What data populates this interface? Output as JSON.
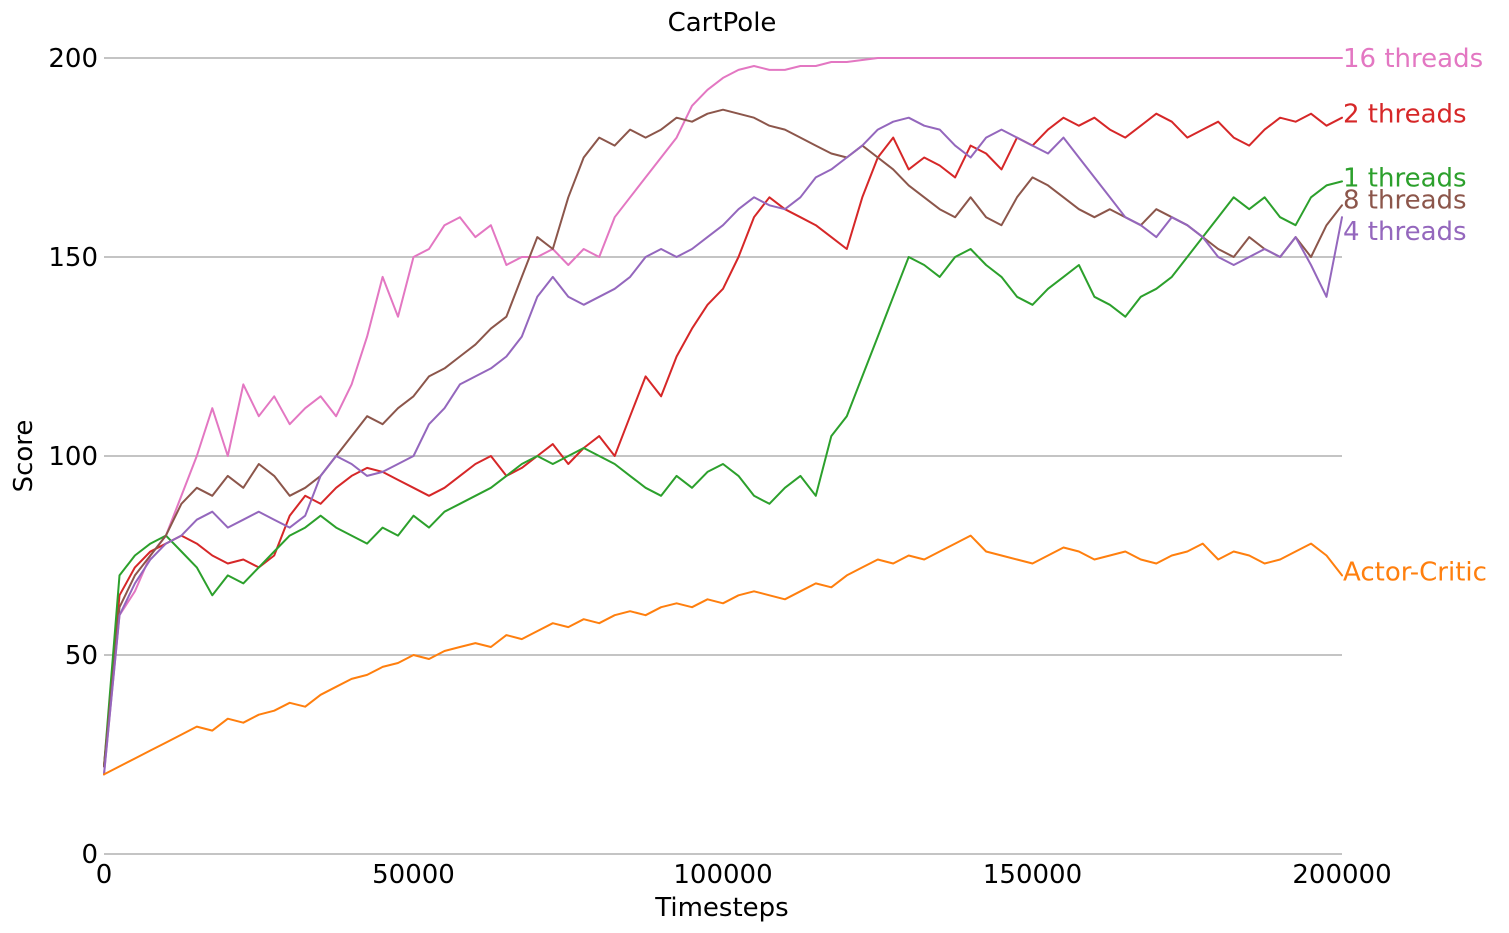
{
  "chart_data": {
    "type": "line",
    "title": "CartPole",
    "xlabel": "Timesteps",
    "ylabel": "Score",
    "xlim": [
      0,
      200000
    ],
    "ylim": [
      0,
      200
    ],
    "xticks": [
      0,
      50000,
      100000,
      150000,
      200000
    ],
    "yticks": [
      0,
      50,
      100,
      150,
      200
    ],
    "grid": "horizontal",
    "legend": "labels at right end of each line",
    "series": [
      {
        "name": "16 threads",
        "color": "#e377c2",
        "x": [
          0,
          2500,
          5000,
          7500,
          10000,
          12500,
          15000,
          17500,
          20000,
          22500,
          25000,
          27500,
          30000,
          32500,
          35000,
          37500,
          40000,
          42500,
          45000,
          47500,
          50000,
          52500,
          55000,
          57500,
          60000,
          62500,
          65000,
          67500,
          70000,
          72500,
          75000,
          77500,
          80000,
          82500,
          85000,
          87500,
          90000,
          92500,
          95000,
          97500,
          100000,
          102500,
          105000,
          107500,
          110000,
          112500,
          115000,
          117500,
          120000,
          125000,
          130000,
          135000,
          140000,
          150000,
          160000,
          170000,
          180000,
          190000,
          200000
        ],
        "y": [
          20,
          60,
          66,
          75,
          80,
          90,
          100,
          112,
          100,
          118,
          110,
          115,
          108,
          112,
          115,
          110,
          118,
          130,
          145,
          135,
          150,
          152,
          158,
          160,
          155,
          158,
          148,
          150,
          150,
          152,
          148,
          152,
          150,
          160,
          165,
          170,
          175,
          180,
          188,
          192,
          195,
          197,
          198,
          197,
          197,
          198,
          198,
          199,
          199,
          200,
          200,
          200,
          200,
          200,
          200,
          200,
          200,
          200,
          200
        ]
      },
      {
        "name": "2 threads",
        "color": "#d62728",
        "x": [
          0,
          2500,
          5000,
          7500,
          10000,
          12500,
          15000,
          17500,
          20000,
          22500,
          25000,
          27500,
          30000,
          32500,
          35000,
          37500,
          40000,
          42500,
          45000,
          47500,
          50000,
          52500,
          55000,
          57500,
          60000,
          62500,
          65000,
          67500,
          70000,
          72500,
          75000,
          77500,
          80000,
          82500,
          85000,
          87500,
          90000,
          92500,
          95000,
          97500,
          100000,
          102500,
          105000,
          107500,
          110000,
          112500,
          115000,
          117500,
          120000,
          122500,
          125000,
          127500,
          130000,
          132500,
          135000,
          137500,
          140000,
          142500,
          145000,
          147500,
          150000,
          152500,
          155000,
          157500,
          160000,
          162500,
          165000,
          167500,
          170000,
          172500,
          175000,
          177500,
          180000,
          182500,
          185000,
          187500,
          190000,
          192500,
          195000,
          197500,
          200000
        ],
        "y": [
          22,
          65,
          72,
          76,
          78,
          80,
          78,
          75,
          73,
          74,
          72,
          75,
          85,
          90,
          88,
          92,
          95,
          97,
          96,
          94,
          92,
          90,
          92,
          95,
          98,
          100,
          95,
          97,
          100,
          103,
          98,
          102,
          105,
          100,
          110,
          120,
          115,
          125,
          132,
          138,
          142,
          150,
          160,
          165,
          162,
          160,
          158,
          155,
          152,
          165,
          175,
          180,
          172,
          175,
          173,
          170,
          178,
          176,
          172,
          180,
          178,
          182,
          185,
          183,
          185,
          182,
          180,
          183,
          186,
          184,
          180,
          182,
          184,
          180,
          178,
          182,
          185,
          184,
          186,
          183,
          185
        ]
      },
      {
        "name": "1 threads",
        "color": "#2ca02c",
        "x": [
          0,
          2500,
          5000,
          7500,
          10000,
          12500,
          15000,
          17500,
          20000,
          22500,
          25000,
          27500,
          30000,
          32500,
          35000,
          37500,
          40000,
          42500,
          45000,
          47500,
          50000,
          52500,
          55000,
          57500,
          60000,
          62500,
          65000,
          67500,
          70000,
          72500,
          75000,
          77500,
          80000,
          82500,
          85000,
          87500,
          90000,
          92500,
          95000,
          97500,
          100000,
          102500,
          105000,
          107500,
          110000,
          112500,
          115000,
          117500,
          120000,
          122500,
          125000,
          127500,
          130000,
          132500,
          135000,
          137500,
          140000,
          142500,
          145000,
          147500,
          150000,
          152500,
          155000,
          157500,
          160000,
          162500,
          165000,
          167500,
          170000,
          172500,
          175000,
          177500,
          180000,
          182500,
          185000,
          187500,
          190000,
          192500,
          195000,
          197500,
          200000
        ],
        "y": [
          22,
          70,
          75,
          78,
          80,
          76,
          72,
          65,
          70,
          68,
          72,
          76,
          80,
          82,
          85,
          82,
          80,
          78,
          82,
          80,
          85,
          82,
          86,
          88,
          90,
          92,
          95,
          98,
          100,
          98,
          100,
          102,
          100,
          98,
          95,
          92,
          90,
          95,
          92,
          96,
          98,
          95,
          90,
          88,
          92,
          95,
          90,
          105,
          110,
          120,
          130,
          140,
          150,
          148,
          145,
          150,
          152,
          148,
          145,
          140,
          138,
          142,
          145,
          148,
          140,
          138,
          135,
          140,
          142,
          145,
          150,
          155,
          160,
          165,
          162,
          165,
          160,
          158,
          165,
          168,
          169
        ]
      },
      {
        "name": "8 threads",
        "color": "#8c564b",
        "x": [
          0,
          2500,
          5000,
          7500,
          10000,
          12500,
          15000,
          17500,
          20000,
          22500,
          25000,
          27500,
          30000,
          32500,
          35000,
          37500,
          40000,
          42500,
          45000,
          47500,
          50000,
          52500,
          55000,
          57500,
          60000,
          62500,
          65000,
          67500,
          70000,
          72500,
          75000,
          77500,
          80000,
          82500,
          85000,
          87500,
          90000,
          92500,
          95000,
          97500,
          100000,
          102500,
          105000,
          107500,
          110000,
          112500,
          115000,
          117500,
          120000,
          122500,
          125000,
          127500,
          130000,
          132500,
          135000,
          137500,
          140000,
          142500,
          145000,
          147500,
          150000,
          152500,
          155000,
          157500,
          160000,
          162500,
          165000,
          167500,
          170000,
          172500,
          175000,
          177500,
          180000,
          182500,
          185000,
          187500,
          190000,
          192500,
          195000,
          197500,
          200000
        ],
        "y": [
          22,
          62,
          70,
          75,
          80,
          88,
          92,
          90,
          95,
          92,
          98,
          95,
          90,
          92,
          95,
          100,
          105,
          110,
          108,
          112,
          115,
          120,
          122,
          125,
          128,
          132,
          135,
          145,
          155,
          152,
          165,
          175,
          180,
          178,
          182,
          180,
          182,
          185,
          184,
          186,
          187,
          186,
          185,
          183,
          182,
          180,
          178,
          176,
          175,
          178,
          175,
          172,
          168,
          165,
          162,
          160,
          165,
          160,
          158,
          165,
          170,
          168,
          165,
          162,
          160,
          162,
          160,
          158,
          162,
          160,
          158,
          155,
          152,
          150,
          155,
          152,
          150,
          155,
          150,
          158,
          163
        ]
      },
      {
        "name": "4 threads",
        "color": "#9467bd",
        "x": [
          0,
          2500,
          5000,
          7500,
          10000,
          12500,
          15000,
          17500,
          20000,
          22500,
          25000,
          27500,
          30000,
          32500,
          35000,
          37500,
          40000,
          42500,
          45000,
          47500,
          50000,
          52500,
          55000,
          57500,
          60000,
          62500,
          65000,
          67500,
          70000,
          72500,
          75000,
          77500,
          80000,
          82500,
          85000,
          87500,
          90000,
          92500,
          95000,
          97500,
          100000,
          102500,
          105000,
          107500,
          110000,
          112500,
          115000,
          117500,
          120000,
          122500,
          125000,
          127500,
          130000,
          132500,
          135000,
          137500,
          140000,
          142500,
          145000,
          147500,
          150000,
          152500,
          155000,
          157500,
          160000,
          162500,
          165000,
          167500,
          170000,
          172500,
          175000,
          177500,
          180000,
          182500,
          185000,
          187500,
          190000,
          192500,
          195000,
          197500,
          200000
        ],
        "y": [
          20,
          60,
          68,
          74,
          78,
          80,
          84,
          86,
          82,
          84,
          86,
          84,
          82,
          85,
          95,
          100,
          98,
          95,
          96,
          98,
          100,
          108,
          112,
          118,
          120,
          122,
          125,
          130,
          140,
          145,
          140,
          138,
          140,
          142,
          145,
          150,
          152,
          150,
          152,
          155,
          158,
          162,
          165,
          163,
          162,
          165,
          170,
          172,
          175,
          178,
          182,
          184,
          185,
          183,
          182,
          178,
          175,
          180,
          182,
          180,
          178,
          176,
          180,
          175,
          170,
          165,
          160,
          158,
          155,
          160,
          158,
          155,
          150,
          148,
          150,
          152,
          150,
          155,
          148,
          140,
          160
        ]
      },
      {
        "name": "Actor-Critic",
        "color": "#ff7f0e",
        "x": [
          0,
          2500,
          5000,
          7500,
          10000,
          12500,
          15000,
          17500,
          20000,
          22500,
          25000,
          27500,
          30000,
          32500,
          35000,
          37500,
          40000,
          42500,
          45000,
          47500,
          50000,
          52500,
          55000,
          57500,
          60000,
          62500,
          65000,
          67500,
          70000,
          72500,
          75000,
          77500,
          80000,
          82500,
          85000,
          87500,
          90000,
          92500,
          95000,
          97500,
          100000,
          102500,
          105000,
          107500,
          110000,
          112500,
          115000,
          117500,
          120000,
          122500,
          125000,
          127500,
          130000,
          132500,
          135000,
          137500,
          140000,
          142500,
          145000,
          147500,
          150000,
          152500,
          155000,
          157500,
          160000,
          162500,
          165000,
          167500,
          170000,
          172500,
          175000,
          177500,
          180000,
          182500,
          185000,
          187500,
          190000,
          192500,
          195000,
          197500,
          200000
        ],
        "y": [
          20,
          22,
          24,
          26,
          28,
          30,
          32,
          31,
          34,
          33,
          35,
          36,
          38,
          37,
          40,
          42,
          44,
          45,
          47,
          48,
          50,
          49,
          51,
          52,
          53,
          52,
          55,
          54,
          56,
          58,
          57,
          59,
          58,
          60,
          61,
          60,
          62,
          63,
          62,
          64,
          63,
          65,
          66,
          65,
          64,
          66,
          68,
          67,
          70,
          72,
          74,
          73,
          75,
          74,
          76,
          78,
          80,
          76,
          75,
          74,
          73,
          75,
          77,
          76,
          74,
          75,
          76,
          74,
          73,
          75,
          76,
          78,
          74,
          76,
          75,
          73,
          74,
          76,
          78,
          75,
          70
        ]
      }
    ]
  }
}
